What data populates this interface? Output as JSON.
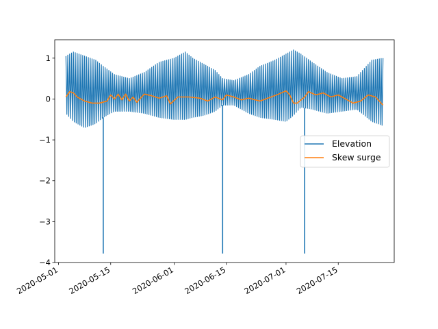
{
  "chart_data": {
    "type": "line",
    "title": "",
    "xlabel": "",
    "ylabel": "",
    "x_axis_type": "date",
    "xlim": [
      "2020-04-30",
      "2020-07-30"
    ],
    "ylim": [
      -4.0,
      1.45
    ],
    "x_ticks": [
      "2020-05-01",
      "2020-05-15",
      "2020-06-01",
      "2020-06-15",
      "2020-07-01",
      "2020-07-15"
    ],
    "y_ticks": [
      1,
      0,
      -1,
      -2,
      -3,
      -4
    ],
    "y_tick_labels": [
      "1",
      "0",
      "−1",
      "−2",
      "−3",
      "−4"
    ],
    "grid": false,
    "legend": {
      "position": "center-right",
      "entries": [
        "Elevation",
        "Skew surge"
      ]
    },
    "series": [
      {
        "name": "Elevation",
        "color": "#1f77b4",
        "style": "semi-diurnal tidal signal, twice-daily high/low",
        "x": [
          "2020-05-03",
          "2020-05-05",
          "2020-05-08",
          "2020-05-11",
          "2020-05-13",
          "2020-05-16",
          "2020-05-20",
          "2020-05-24",
          "2020-05-28",
          "2020-06-01",
          "2020-06-04",
          "2020-06-06",
          "2020-06-09",
          "2020-06-12",
          "2020-06-14",
          "2020-06-17",
          "2020-06-21",
          "2020-06-24",
          "2020-06-28",
          "2020-07-01",
          "2020-07-03",
          "2020-07-05",
          "2020-07-08",
          "2020-07-12",
          "2020-07-16",
          "2020-07-20",
          "2020-07-24",
          "2020-07-27"
        ],
        "high": [
          1.05,
          1.15,
          1.05,
          0.95,
          0.8,
          0.6,
          0.5,
          0.65,
          0.9,
          1.0,
          1.15,
          1.0,
          0.85,
          0.7,
          0.5,
          0.45,
          0.6,
          0.8,
          0.95,
          1.1,
          1.2,
          1.1,
          0.9,
          0.65,
          0.5,
          0.55,
          0.95,
          1.0
        ],
        "low": [
          -0.35,
          -0.55,
          -0.7,
          -0.6,
          -0.45,
          -0.3,
          -0.3,
          -0.35,
          -0.45,
          -0.5,
          -0.5,
          -0.45,
          -0.4,
          -0.3,
          -0.15,
          -0.15,
          -0.35,
          -0.45,
          -0.5,
          -0.55,
          -0.4,
          -0.2,
          -0.25,
          -0.35,
          -0.3,
          -0.25,
          -0.55,
          -0.65
        ],
        "spikes": [
          {
            "x": "2020-05-13",
            "y": -3.78
          },
          {
            "x": "2020-06-14",
            "y": -3.78
          },
          {
            "x": "2020-07-06",
            "y": -3.78
          }
        ]
      },
      {
        "name": "Skew surge",
        "color": "#ff7f0e",
        "x": [
          "2020-05-03",
          "2020-05-04",
          "2020-05-05",
          "2020-05-06",
          "2020-05-08",
          "2020-05-10",
          "2020-05-12",
          "2020-05-14",
          "2020-05-15",
          "2020-05-16",
          "2020-05-17",
          "2020-05-18",
          "2020-05-19",
          "2020-05-20",
          "2020-05-21",
          "2020-05-22",
          "2020-05-24",
          "2020-05-26",
          "2020-05-28",
          "2020-05-30",
          "2020-05-31",
          "2020-06-02",
          "2020-06-05",
          "2020-06-08",
          "2020-06-10",
          "2020-06-12",
          "2020-06-14",
          "2020-06-15",
          "2020-06-17",
          "2020-06-19",
          "2020-06-21",
          "2020-06-24",
          "2020-06-27",
          "2020-06-29",
          "2020-07-01",
          "2020-07-02",
          "2020-07-03",
          "2020-07-04",
          "2020-07-06",
          "2020-07-07",
          "2020-07-09",
          "2020-07-11",
          "2020-07-13",
          "2020-07-15",
          "2020-07-17",
          "2020-07-19",
          "2020-07-21",
          "2020-07-23",
          "2020-07-25",
          "2020-07-27"
        ],
        "y": [
          0.05,
          0.18,
          0.15,
          0.05,
          -0.05,
          -0.1,
          -0.1,
          -0.05,
          0.1,
          0.0,
          0.12,
          -0.02,
          0.12,
          -0.05,
          0.05,
          -0.08,
          0.12,
          0.08,
          0.02,
          0.08,
          -0.12,
          0.05,
          0.05,
          0.02,
          -0.05,
          0.05,
          -0.02,
          0.1,
          0.05,
          -0.02,
          0.02,
          -0.05,
          0.05,
          0.12,
          0.2,
          0.1,
          -0.1,
          -0.1,
          0.05,
          0.18,
          0.1,
          0.15,
          0.05,
          0.1,
          0.0,
          -0.1,
          -0.05,
          0.1,
          0.05,
          -0.15
        ]
      }
    ]
  }
}
